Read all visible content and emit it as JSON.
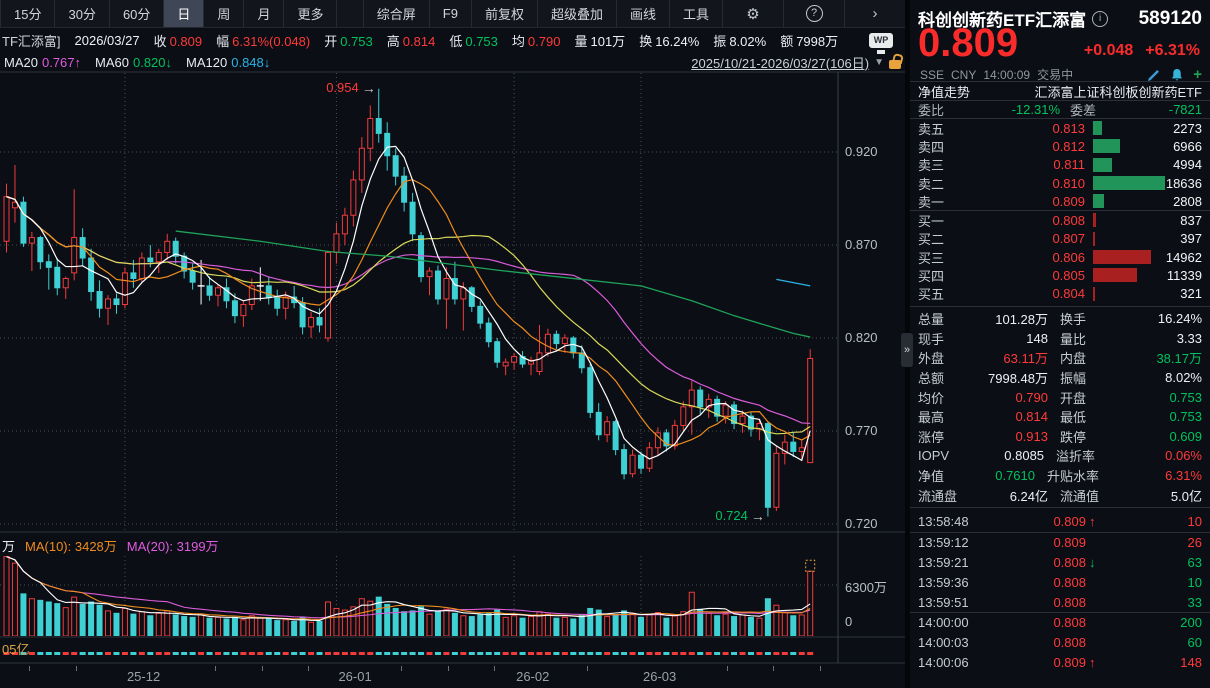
{
  "colors": {
    "up": "#f23b3b",
    "down": "#3fd0d4",
    "doji": "#ffffff",
    "ma5": "#ffffff",
    "ma10": "#f08c1e",
    "ma20": "#d9d95a",
    "ma30": "#d95cd9",
    "ma60": "#1fa35a",
    "ma120": "#2bb3e6",
    "red_text": "#ff3a3a",
    "green_text": "#00c25e",
    "sell_bar": "#21945a",
    "buy_bar": "#a8201f",
    "grid": "#4a5059",
    "axis_text": "#9aa1ab",
    "accent_orange": "#e8a33d"
  },
  "toolbar": {
    "periods": [
      "15分",
      "30分",
      "60分",
      "日",
      "周",
      "月",
      "更多"
    ],
    "active_period": "日",
    "tools": [
      "综合屏",
      "F9",
      "前复权",
      "超级叠加",
      "画线",
      "工具"
    ],
    "gear_icon": "⚙",
    "help_icon": "?",
    "chevron_icon": "›"
  },
  "quote_bar": {
    "prefix": "TF汇添富]",
    "date": "2026/03/27",
    "fields": [
      {
        "label": "收",
        "value": "0.809",
        "cls": "red"
      },
      {
        "label": "幅",
        "value": "6.31%(0.048)",
        "cls": "red"
      },
      {
        "label": "开",
        "value": "0.753",
        "cls": "grn"
      },
      {
        "label": "高",
        "value": "0.814",
        "cls": "red"
      },
      {
        "label": "低",
        "value": "0.753",
        "cls": "grn"
      },
      {
        "label": "均",
        "value": "0.790",
        "cls": "red"
      },
      {
        "label": "量",
        "value": "101万",
        "cls": "wht"
      },
      {
        "label": "换",
        "value": "16.24%",
        "cls": "wht"
      },
      {
        "label": "振",
        "value": "8.02%",
        "cls": "wht"
      },
      {
        "label": "额",
        "value": "7998万",
        "cls": "wht"
      }
    ],
    "wp_icon": "WP"
  },
  "ma_legend": {
    "items": [
      {
        "label": "MA20",
        "value": "0.767",
        "arrow": "↑",
        "cls": "mag"
      },
      {
        "label": "MA60",
        "value": "0.820",
        "arrow": "↓",
        "cls": "grn"
      },
      {
        "label": "MA120",
        "value": "0.848",
        "arrow": "↓",
        "cls": "cya"
      }
    ],
    "range": "2025/10/21-2026/03/27(106日)",
    "dropdown_icon": "▼"
  },
  "chart_data": {
    "type": "candlestick",
    "y_axis_labels": [
      "0.920",
      "0.870",
      "0.820",
      "0.770",
      "0.720"
    ],
    "y_axis_values": [
      0.92,
      0.87,
      0.82,
      0.77,
      0.72
    ],
    "x_labels": [
      {
        "text": "25-12",
        "index": 14
      },
      {
        "text": "26-01",
        "index": 39
      },
      {
        "text": "26-02",
        "index": 60
      },
      {
        "text": "26-03",
        "index": 75
      }
    ],
    "annotations": {
      "peak": {
        "text": "0.954",
        "price": 0.954,
        "index": 44,
        "cls": "red"
      },
      "low": {
        "text": "0.724",
        "price": 0.724,
        "index": 90,
        "cls": "grn"
      }
    },
    "candles": [
      [
        0.872,
        0.903,
        0.866,
        0.896
      ],
      [
        0.89,
        0.913,
        0.882,
        0.893
      ],
      [
        0.893,
        0.896,
        0.869,
        0.871
      ],
      [
        0.871,
        0.877,
        0.856,
        0.874
      ],
      [
        0.874,
        0.875,
        0.857,
        0.861
      ],
      [
        0.861,
        0.865,
        0.846,
        0.858
      ],
      [
        0.858,
        0.863,
        0.843,
        0.847
      ],
      [
        0.847,
        0.853,
        0.841,
        0.852
      ],
      [
        0.855,
        0.9,
        0.851,
        0.874
      ],
      [
        0.874,
        0.879,
        0.859,
        0.863
      ],
      [
        0.863,
        0.868,
        0.84,
        0.845
      ],
      [
        0.845,
        0.851,
        0.831,
        0.836
      ],
      [
        0.836,
        0.843,
        0.827,
        0.841
      ],
      [
        0.841,
        0.844,
        0.833,
        0.838
      ],
      [
        0.838,
        0.858,
        0.836,
        0.855
      ],
      [
        0.855,
        0.862,
        0.847,
        0.852
      ],
      [
        0.852,
        0.866,
        0.85,
        0.863
      ],
      [
        0.863,
        0.87,
        0.858,
        0.861
      ],
      [
        0.861,
        0.868,
        0.855,
        0.866
      ],
      [
        0.866,
        0.876,
        0.862,
        0.872
      ],
      [
        0.872,
        0.874,
        0.86,
        0.864
      ],
      [
        0.864,
        0.866,
        0.852,
        0.856
      ],
      [
        0.856,
        0.86,
        0.846,
        0.85
      ],
      [
        0.848,
        0.862,
        0.838,
        0.848
      ],
      [
        0.848,
        0.853,
        0.84,
        0.843
      ],
      [
        0.843,
        0.849,
        0.837,
        0.847
      ],
      [
        0.847,
        0.852,
        0.836,
        0.84
      ],
      [
        0.84,
        0.844,
        0.828,
        0.832
      ],
      [
        0.832,
        0.84,
        0.826,
        0.838
      ],
      [
        0.838,
        0.852,
        0.835,
        0.848
      ],
      [
        0.848,
        0.858,
        0.84,
        0.848
      ],
      [
        0.848,
        0.853,
        0.838,
        0.842
      ],
      [
        0.842,
        0.846,
        0.832,
        0.836
      ],
      [
        0.836,
        0.845,
        0.83,
        0.842
      ],
      [
        0.842,
        0.848,
        0.836,
        0.839
      ],
      [
        0.839,
        0.842,
        0.822,
        0.826
      ],
      [
        0.826,
        0.834,
        0.82,
        0.831
      ],
      [
        0.831,
        0.836,
        0.823,
        0.827
      ],
      [
        0.82,
        0.867,
        0.818,
        0.866
      ],
      [
        0.866,
        0.882,
        0.86,
        0.876
      ],
      [
        0.876,
        0.89,
        0.87,
        0.886
      ],
      [
        0.886,
        0.91,
        0.88,
        0.905
      ],
      [
        0.905,
        0.928,
        0.898,
        0.922
      ],
      [
        0.922,
        0.945,
        0.915,
        0.938
      ],
      [
        0.938,
        0.954,
        0.925,
        0.93
      ],
      [
        0.93,
        0.936,
        0.91,
        0.918
      ],
      [
        0.918,
        0.922,
        0.902,
        0.907
      ],
      [
        0.907,
        0.912,
        0.888,
        0.893
      ],
      [
        0.893,
        0.898,
        0.872,
        0.876
      ],
      [
        0.875,
        0.877,
        0.85,
        0.853
      ],
      [
        0.853,
        0.858,
        0.843,
        0.856
      ],
      [
        0.856,
        0.859,
        0.838,
        0.841
      ],
      [
        0.841,
        0.858,
        0.825,
        0.852
      ],
      [
        0.852,
        0.861,
        0.838,
        0.841
      ],
      [
        0.841,
        0.85,
        0.824,
        0.847
      ],
      [
        0.847,
        0.848,
        0.834,
        0.837
      ],
      [
        0.837,
        0.84,
        0.825,
        0.828
      ],
      [
        0.828,
        0.831,
        0.815,
        0.818
      ],
      [
        0.818,
        0.82,
        0.804,
        0.807
      ],
      [
        0.805,
        0.809,
        0.8,
        0.807
      ],
      [
        0.807,
        0.812,
        0.803,
        0.81
      ],
      [
        0.81,
        0.813,
        0.804,
        0.806
      ],
      [
        0.806,
        0.81,
        0.8,
        0.808
      ],
      [
        0.802,
        0.827,
        0.8,
        0.812
      ],
      [
        0.812,
        0.825,
        0.81,
        0.822
      ],
      [
        0.822,
        0.824,
        0.814,
        0.817
      ],
      [
        0.817,
        0.822,
        0.812,
        0.82
      ],
      [
        0.82,
        0.821,
        0.809,
        0.812
      ],
      [
        0.812,
        0.816,
        0.801,
        0.804
      ],
      [
        0.804,
        0.806,
        0.777,
        0.78
      ],
      [
        0.78,
        0.785,
        0.765,
        0.768
      ],
      [
        0.768,
        0.778,
        0.764,
        0.775
      ],
      [
        0.775,
        0.776,
        0.757,
        0.76
      ],
      [
        0.76,
        0.763,
        0.744,
        0.747
      ],
      [
        0.747,
        0.76,
        0.745,
        0.757
      ],
      [
        0.757,
        0.759,
        0.747,
        0.75
      ],
      [
        0.75,
        0.764,
        0.748,
        0.761
      ],
      [
        0.761,
        0.772,
        0.757,
        0.769
      ],
      [
        0.769,
        0.771,
        0.759,
        0.762
      ],
      [
        0.762,
        0.776,
        0.76,
        0.773
      ],
      [
        0.773,
        0.786,
        0.77,
        0.783
      ],
      [
        0.783,
        0.797,
        0.768,
        0.792
      ],
      [
        0.792,
        0.794,
        0.779,
        0.783
      ],
      [
        0.783,
        0.79,
        0.777,
        0.787
      ],
      [
        0.787,
        0.789,
        0.775,
        0.778
      ],
      [
        0.778,
        0.786,
        0.774,
        0.784
      ],
      [
        0.784,
        0.786,
        0.771,
        0.774
      ],
      [
        0.774,
        0.781,
        0.769,
        0.778
      ],
      [
        0.778,
        0.78,
        0.767,
        0.771
      ],
      [
        0.771,
        0.776,
        0.765,
        0.774
      ],
      [
        0.774,
        0.775,
        0.724,
        0.729
      ],
      [
        0.729,
        0.762,
        0.727,
        0.758
      ],
      [
        0.758,
        0.768,
        0.752,
        0.764
      ],
      [
        0.764,
        0.769,
        0.756,
        0.759
      ],
      [
        0.759,
        0.765,
        0.754,
        0.761
      ],
      [
        0.753,
        0.814,
        0.753,
        0.809
      ]
    ],
    "volumes": [
      9800,
      9000,
      5200,
      4600,
      4400,
      4200,
      4000,
      3500,
      4800,
      3900,
      4200,
      3800,
      3100,
      2800,
      3400,
      2700,
      3000,
      2500,
      2800,
      3100,
      2600,
      2400,
      2300,
      2600,
      2200,
      2300,
      2100,
      2300,
      2000,
      2500,
      2200,
      2100,
      1900,
      2000,
      1800,
      2300,
      1700,
      1800,
      4200,
      3400,
      3200,
      3600,
      4600,
      4300,
      4800,
      3900,
      3400,
      3000,
      3100,
      3600,
      2700,
      3000,
      3300,
      2800,
      2500,
      2400,
      2600,
      2800,
      3200,
      2300,
      2500,
      2200,
      2400,
      3000,
      2700,
      2200,
      2300,
      2100,
      2600,
      3400,
      3200,
      2400,
      2600,
      3100,
      2800,
      2300,
      2600,
      2900,
      2200,
      2500,
      3000,
      5400,
      3300,
      2800,
      2500,
      2700,
      2400,
      2600,
      2300,
      2200,
      4600,
      3800,
      2900,
      2500,
      2600,
      7998
    ],
    "ma60_points": [
      [
        20,
        0.8775
      ],
      [
        30,
        0.872
      ],
      [
        38,
        0.8665
      ],
      [
        45,
        0.864
      ],
      [
        52,
        0.86
      ],
      [
        58,
        0.8565
      ],
      [
        66,
        0.8525
      ],
      [
        75,
        0.848
      ],
      [
        81,
        0.84
      ],
      [
        86,
        0.832
      ],
      [
        90,
        0.8265
      ],
      [
        93,
        0.8225
      ],
      [
        95,
        0.8205
      ]
    ],
    "ma120_points": [
      [
        91,
        0.8515
      ],
      [
        95,
        0.848
      ]
    ],
    "vol_axis": {
      "gridline_label": "6300万",
      "gridline_value": 6300,
      "zero_label": "0"
    },
    "vol_header": {
      "clipped_prefix": "万",
      "ma10_label": "MA(10): 3428万",
      "ma20_label": "MA(20): 3199万"
    },
    "mini_pane_label": "05亿"
  },
  "panel": {
    "title": "科创创新药ETF汇添富",
    "code": "589120",
    "price": "0.809",
    "change": "+0.048",
    "change_pct": "+6.31%",
    "exchange": "SSE",
    "currency": "CNY",
    "time": "14:00:09",
    "status": "交易中",
    "nav_label": "净值走势",
    "nav_name": "汇添富上证科创板创新药ETF",
    "weibi_label": "委比",
    "weibi_value": "-12.31%",
    "weicha_label": "委差",
    "weicha_value": "-7821",
    "sell_rows": [
      {
        "label": "卖五",
        "price": "0.813",
        "qty": "2273",
        "qty_n": 2273
      },
      {
        "label": "卖四",
        "price": "0.812",
        "qty": "6966",
        "qty_n": 6966
      },
      {
        "label": "卖三",
        "price": "0.811",
        "qty": "4994",
        "qty_n": 4994
      },
      {
        "label": "卖二",
        "price": "0.810",
        "qty": "18636",
        "qty_n": 18636
      },
      {
        "label": "卖一",
        "price": "0.809",
        "qty": "2808",
        "qty_n": 2808
      }
    ],
    "buy_rows": [
      {
        "label": "买一",
        "price": "0.808",
        "qty": "837",
        "qty_n": 837
      },
      {
        "label": "买二",
        "price": "0.807",
        "qty": "397",
        "qty_n": 397
      },
      {
        "label": "买三",
        "price": "0.806",
        "qty": "14962",
        "qty_n": 14962
      },
      {
        "label": "买四",
        "price": "0.805",
        "qty": "11339",
        "qty_n": 11339
      },
      {
        "label": "买五",
        "price": "0.804",
        "qty": "321",
        "qty_n": 321
      }
    ],
    "stats_rows": [
      [
        {
          "label": "总量",
          "value": "101.28万",
          "cls": "wht"
        },
        {
          "label": "换手",
          "value": "16.24%",
          "cls": "wht"
        }
      ],
      [
        {
          "label": "现手",
          "value": "148",
          "cls": "wht"
        },
        {
          "label": "量比",
          "value": "3.33",
          "cls": "wht"
        }
      ],
      [
        {
          "label": "外盘",
          "value": "63.11万",
          "cls": "red"
        },
        {
          "label": "内盘",
          "value": "38.17万",
          "cls": "grn"
        }
      ],
      [
        {
          "label": "总额",
          "value": "7998.48万",
          "cls": "wht"
        },
        {
          "label": "振幅",
          "value": "8.02%",
          "cls": "wht"
        }
      ],
      [
        {
          "label": "均价",
          "value": "0.790",
          "cls": "red"
        },
        {
          "label": "开盘",
          "value": "0.753",
          "cls": "grn"
        }
      ],
      [
        {
          "label": "最高",
          "value": "0.814",
          "cls": "red"
        },
        {
          "label": "最低",
          "value": "0.753",
          "cls": "grn"
        }
      ],
      [
        {
          "label": "涨停",
          "value": "0.913",
          "cls": "red"
        },
        {
          "label": "跌停",
          "value": "0.609",
          "cls": "grn"
        }
      ],
      [
        {
          "label": "IOPV",
          "value": "0.8085",
          "cls": "wht"
        },
        {
          "label": "溢折率",
          "value": "0.06%",
          "cls": "red"
        }
      ],
      [
        {
          "label": "净值",
          "value": "0.7610",
          "cls": "grn"
        },
        {
          "label": "升贴水率",
          "value": "6.31%",
          "cls": "red"
        }
      ],
      [
        {
          "label": "流通盘",
          "value": "6.24亿",
          "cls": "wht"
        },
        {
          "label": "流通值",
          "value": "5.0亿",
          "cls": "wht"
        }
      ]
    ],
    "tape_rows": [
      {
        "time": "13:58:48",
        "price": "0.809",
        "arrow": "↑",
        "arrow_cls": "red",
        "qty": "10",
        "cls": "red",
        "group_end": true
      },
      {
        "time": "13:59:12",
        "price": "0.809",
        "arrow": "",
        "arrow_cls": "",
        "qty": "26",
        "cls": "red",
        "group_end": false
      },
      {
        "time": "13:59:21",
        "price": "0.808",
        "arrow": "↓",
        "arrow_cls": "grn",
        "qty": "63",
        "cls": "grn",
        "group_end": false
      },
      {
        "time": "13:59:36",
        "price": "0.808",
        "arrow": "",
        "arrow_cls": "",
        "qty": "10",
        "cls": "grn",
        "group_end": false
      },
      {
        "time": "13:59:51",
        "price": "0.808",
        "arrow": "",
        "arrow_cls": "",
        "qty": "33",
        "cls": "grn",
        "group_end": true
      },
      {
        "time": "14:00:00",
        "price": "0.808",
        "arrow": "",
        "arrow_cls": "",
        "qty": "200",
        "cls": "grn",
        "group_end": false
      },
      {
        "time": "14:00:03",
        "price": "0.808",
        "arrow": "",
        "arrow_cls": "",
        "qty": "60",
        "cls": "grn",
        "group_end": false
      },
      {
        "time": "14:00:06",
        "price": "0.809",
        "arrow": "↑",
        "arrow_cls": "red",
        "qty": "148",
        "cls": "red",
        "group_end": false
      }
    ],
    "collapse_icon": "»"
  }
}
